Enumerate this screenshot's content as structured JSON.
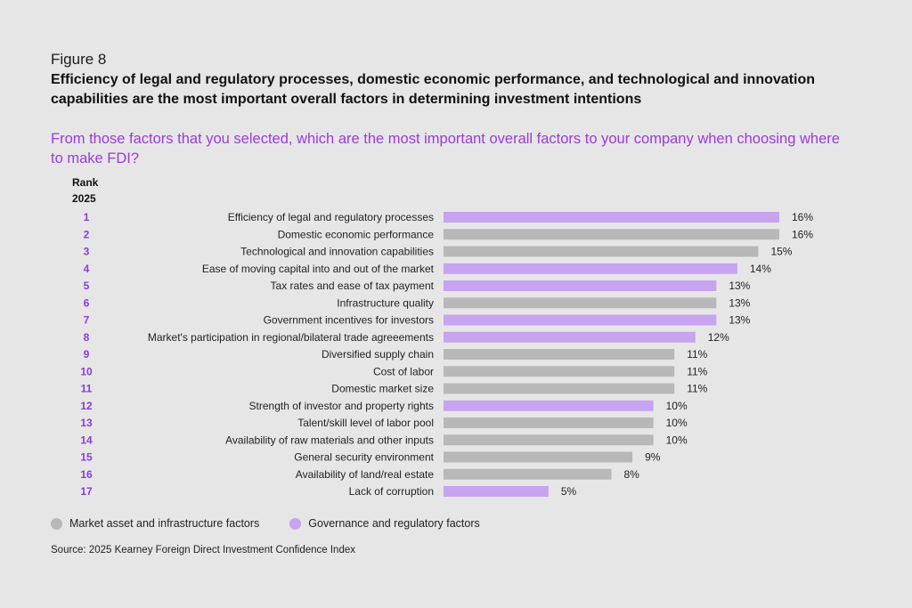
{
  "figure": {
    "label": "Figure 8",
    "title": "Efficiency of legal and regulatory processes, domestic economic performance, and technological and innovation capabilities are the most important overall factors in determining investment intentions",
    "question": "From those factors that you selected, which are the most important overall factors to your company when choosing where to make FDI?",
    "rank_header_line1": "Rank",
    "rank_header_line2": "2025",
    "source": "Source: 2025 Kearney Foreign Direct Investment Confidence Index"
  },
  "colors": {
    "market": "#b8b8b8",
    "governance": "#c7a3f0",
    "rank": "#8a3ddb",
    "question": "#9b3bdc"
  },
  "legend": [
    {
      "label": "Market asset and infrastructure factors",
      "group": "market"
    },
    {
      "label": "Governance and regulatory factors",
      "group": "governance"
    }
  ],
  "chart_data": {
    "type": "bar",
    "orientation": "horizontal",
    "value_suffix": "%",
    "xlim": [
      0,
      16
    ],
    "categories": [
      {
        "rank": "1",
        "label": "Efficiency of legal and regulatory processes",
        "value": 16,
        "group": "governance"
      },
      {
        "rank": "2",
        "label": "Domestic economic performance",
        "value": 16,
        "group": "market"
      },
      {
        "rank": "3",
        "label": "Technological and innovation capabilities",
        "value": 15,
        "group": "market"
      },
      {
        "rank": "4",
        "label": "Ease of moving capital into and out of the market",
        "value": 14,
        "group": "governance"
      },
      {
        "rank": "5",
        "label": "Tax rates and ease of tax payment",
        "value": 13,
        "group": "governance"
      },
      {
        "rank": "6",
        "label": "Infrastructure quality",
        "value": 13,
        "group": "market"
      },
      {
        "rank": "7",
        "label": "Government incentives for investors",
        "value": 13,
        "group": "governance"
      },
      {
        "rank": "8",
        "label": "Market's participation in regional/bilateral trade agreeements",
        "value": 12,
        "group": "governance"
      },
      {
        "rank": "9",
        "label": "Diversified supply chain",
        "value": 11,
        "group": "market"
      },
      {
        "rank": "10",
        "label": "Cost of labor",
        "value": 11,
        "group": "market"
      },
      {
        "rank": "11",
        "label": "Domestic market size",
        "value": 11,
        "group": "market"
      },
      {
        "rank": "12",
        "label": "Strength of investor and property rights",
        "value": 10,
        "group": "governance"
      },
      {
        "rank": "13",
        "label": "Talent/skill level of labor pool",
        "value": 10,
        "group": "market"
      },
      {
        "rank": "14",
        "label": "Availability of raw materials and other inputs",
        "value": 10,
        "group": "market"
      },
      {
        "rank": "15",
        "label": "General security environment",
        "value": 9,
        "group": "market"
      },
      {
        "rank": "16",
        "label": "Availability of land/real estate",
        "value": 8,
        "group": "market"
      },
      {
        "rank": "17",
        "label": "Lack of corruption",
        "value": 5,
        "group": "governance"
      }
    ]
  }
}
